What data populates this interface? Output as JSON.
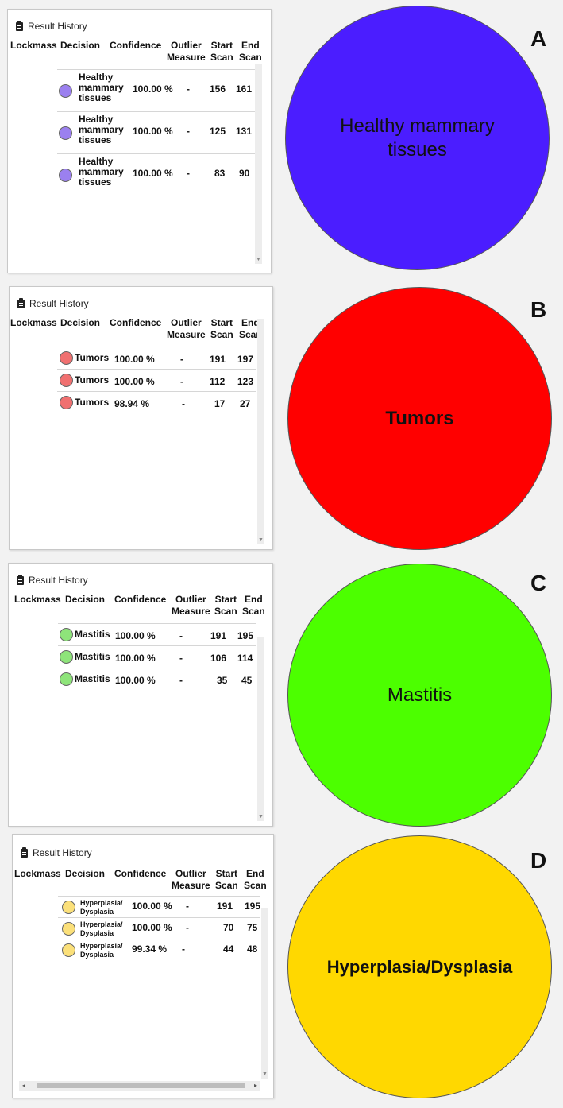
{
  "panels": [
    {
      "id": "A",
      "title": "Result History",
      "headers": {
        "lockmass": "Lockmass",
        "decision": "Decision",
        "confidence": "Confidence",
        "outlier1": "Outlier",
        "outlier2": "Measure",
        "start1": "Start",
        "start2": "Scan",
        "end1": "End",
        "end2": "Scan"
      },
      "dot_color": "#9b80ef",
      "rows": [
        {
          "decision": [
            "Healthy",
            "mammary",
            "tissues"
          ],
          "confidence": "100.00 %",
          "outlier": "-",
          "start": "156",
          "end": "161"
        },
        {
          "decision": [
            "Healthy",
            "mammary",
            "tissues"
          ],
          "confidence": "100.00 %",
          "outlier": "-",
          "start": "125",
          "end": "131"
        },
        {
          "decision": [
            "Healthy",
            "mammary",
            "tissues"
          ],
          "confidence": "100.00 %",
          "outlier": "-",
          "start": "83",
          "end": "90"
        }
      ],
      "circle": {
        "label": "Healthy mammary tissues",
        "color": "#4b1dff"
      }
    },
    {
      "id": "B",
      "title": "Result History",
      "headers": {
        "lockmass": "Lockmass",
        "decision": "Decision",
        "confidence": "Confidence",
        "outlier1": "Outlier",
        "outlier2": "Measure",
        "start1": "Start",
        "start2": "Scan",
        "end1": "End",
        "end2": "Scan"
      },
      "dot_color": "#f07070",
      "rows": [
        {
          "decision": [
            "Tumors"
          ],
          "confidence": "100.00 %",
          "outlier": "-",
          "start": "191",
          "end": "197"
        },
        {
          "decision": [
            "Tumors"
          ],
          "confidence": "100.00 %",
          "outlier": "-",
          "start": "112",
          "end": "123"
        },
        {
          "decision": [
            "Tumors"
          ],
          "confidence": "98.94 %",
          "outlier": "-",
          "start": "17",
          "end": "27"
        }
      ],
      "circle": {
        "label": "Tumors",
        "color": "#ff0000"
      }
    },
    {
      "id": "C",
      "title": "Result History",
      "headers": {
        "lockmass": "Lockmass",
        "decision": "Decision",
        "confidence": "Confidence",
        "outlier1": "Outlier",
        "outlier2": "Measure",
        "start1": "Start",
        "start2": "Scan",
        "end1": "End",
        "end2": "Scan"
      },
      "dot_color": "#8ee47a",
      "rows": [
        {
          "decision": [
            "Mastitis"
          ],
          "confidence": "100.00 %",
          "outlier": "-",
          "start": "191",
          "end": "195"
        },
        {
          "decision": [
            "Mastitis"
          ],
          "confidence": "100.00 %",
          "outlier": "-",
          "start": "106",
          "end": "114"
        },
        {
          "decision": [
            "Mastitis"
          ],
          "confidence": "100.00 %",
          "outlier": "-",
          "start": "35",
          "end": "45"
        }
      ],
      "circle": {
        "label": "Mastitis",
        "color": "#4cff00"
      }
    },
    {
      "id": "D",
      "title": "Result History",
      "headers": {
        "lockmass": "Lockmass",
        "decision": "Decision",
        "confidence": "Confidence",
        "outlier1": "Outlier",
        "outlier2": "Measure",
        "start1": "Start",
        "start2": "Scan",
        "end1": "End",
        "end2": "Scan"
      },
      "dot_color": "#fbe07a",
      "rows": [
        {
          "decision": [
            "Hyperplasia/",
            "Dysplasia"
          ],
          "confidence": "100.00 %",
          "outlier": "-",
          "start": "191",
          "end": "195"
        },
        {
          "decision": [
            "Hyperplasia/",
            "Dysplasia"
          ],
          "confidence": "100.00 %",
          "outlier": "-",
          "start": "70",
          "end": "75"
        },
        {
          "decision": [
            "Hyperplasia/",
            "Dysplasia"
          ],
          "confidence": "99.34 %",
          "outlier": "-",
          "start": "44",
          "end": "48"
        }
      ],
      "circle": {
        "label": "Hyperplasia/Dysplasia",
        "color": "#ffd800"
      }
    }
  ]
}
